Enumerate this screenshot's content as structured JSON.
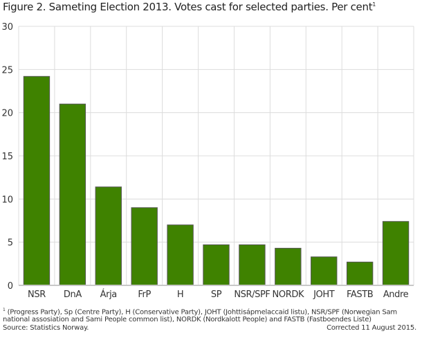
{
  "chart_data": {
    "type": "bar",
    "title": "Figure 2. Sameting Election 2013. Votes cast for selected parties. Per cent",
    "title_footnote_mark": "1",
    "categories": [
      "NSR",
      "DnA",
      "Árja",
      "FrP",
      "H",
      "SP",
      "NSR/SPF",
      "NORDK",
      "JOHT",
      "FASTB",
      "Andre"
    ],
    "values": [
      24.2,
      21.0,
      11.4,
      9.0,
      7.0,
      4.7,
      4.7,
      4.3,
      3.3,
      2.7,
      7.4
    ],
    "ylim": [
      0,
      30
    ],
    "yticks": [
      0,
      5,
      10,
      15,
      20,
      25,
      30
    ],
    "xlabel": "",
    "ylabel": "",
    "grid": true,
    "bar_color": "#3f8200",
    "bar_edge_color": "#555555"
  },
  "footnote": {
    "mark": "1",
    "line1": "(Progress Party), Sp (Centre Party), H (Conservative Party), JOHT (Johttisápmelaccaid listu), NSR/SPF (Norwegian Sam",
    "line2": "national assosiation and Sami People common list), NORDK (Nordkalott People) and FASTB (Fastboendes Liste)",
    "source": "Source: Statistics Norway.",
    "corrected": "Corrected 11 August 2015."
  }
}
